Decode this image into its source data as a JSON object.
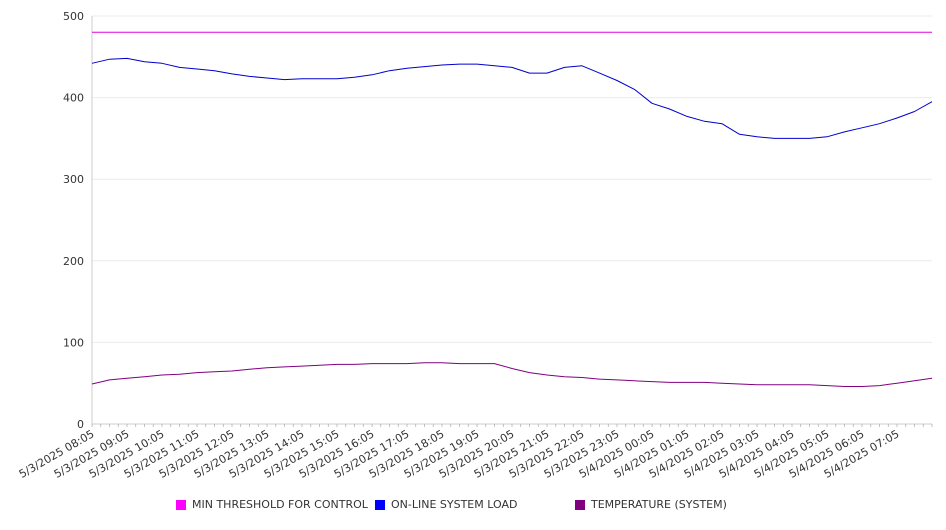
{
  "chart_data": {
    "type": "line",
    "title": "",
    "xlabel": "",
    "ylabel": "",
    "ylim": [
      0,
      500
    ],
    "yticks": [
      0,
      100,
      200,
      300,
      400,
      500
    ],
    "grid": true,
    "legend_position": "bottom",
    "x_tick_labels": [
      "5/3/2025 08:05",
      "5/3/2025 09:05",
      "5/3/2025 10:05",
      "5/3/2025 11:05",
      "5/3/2025 12:05",
      "5/3/2025 13:05",
      "5/3/2025 14:05",
      "5/3/2025 15:05",
      "5/3/2025 16:05",
      "5/3/2025 17:05",
      "5/3/2025 18:05",
      "5/3/2025 19:05",
      "5/3/2025 20:05",
      "5/3/2025 21:05",
      "5/3/2025 22:05",
      "5/3/2025 23:05",
      "5/4/2025 00:05",
      "5/4/2025 01:05",
      "5/4/2025 02:05",
      "5/4/2025 03:05",
      "5/4/2025 04:05",
      "5/4/2025 05:05",
      "5/4/2025 06:05",
      "5/4/2025 07:05"
    ],
    "x": [
      "5/3/2025 08:05",
      "5/3/2025 08:35",
      "5/3/2025 09:05",
      "5/3/2025 09:35",
      "5/3/2025 10:05",
      "5/3/2025 10:35",
      "5/3/2025 11:05",
      "5/3/2025 11:35",
      "5/3/2025 12:05",
      "5/3/2025 12:35",
      "5/3/2025 13:05",
      "5/3/2025 13:35",
      "5/3/2025 14:05",
      "5/3/2025 14:35",
      "5/3/2025 15:05",
      "5/3/2025 15:35",
      "5/3/2025 16:05",
      "5/3/2025 16:35",
      "5/3/2025 17:05",
      "5/3/2025 17:35",
      "5/3/2025 18:05",
      "5/3/2025 18:35",
      "5/3/2025 19:05",
      "5/3/2025 19:35",
      "5/3/2025 20:05",
      "5/3/2025 20:35",
      "5/3/2025 21:05",
      "5/3/2025 21:35",
      "5/3/2025 22:05",
      "5/3/2025 22:35",
      "5/3/2025 23:05",
      "5/3/2025 23:35",
      "5/4/2025 00:05",
      "5/4/2025 00:35",
      "5/4/2025 01:05",
      "5/4/2025 01:35",
      "5/4/2025 02:05",
      "5/4/2025 02:35",
      "5/4/2025 03:05",
      "5/4/2025 03:35",
      "5/4/2025 04:05",
      "5/4/2025 04:35",
      "5/4/2025 05:05",
      "5/4/2025 05:35",
      "5/4/2025 06:05",
      "5/4/2025 06:35",
      "5/4/2025 07:05",
      "5/4/2025 07:35",
      "5/4/2025 08:05"
    ],
    "series": [
      {
        "name": "MIN THRESHOLD FOR CONTROL",
        "color": "#dd00dd",
        "legend_swatch_color": "#ff00ff",
        "values": [
          480,
          480,
          480,
          480,
          480,
          480,
          480,
          480,
          480,
          480,
          480,
          480,
          480,
          480,
          480,
          480,
          480,
          480,
          480,
          480,
          480,
          480,
          480,
          480,
          480,
          480,
          480,
          480,
          480,
          480,
          480,
          480,
          480,
          480,
          480,
          480,
          480,
          480,
          480,
          480,
          480,
          480,
          480,
          480,
          480,
          480,
          480,
          480,
          480
        ]
      },
      {
        "name": "ON-LINE SYSTEM LOAD",
        "color": "#0000cc",
        "legend_swatch_color": "#0000ff",
        "values": [
          442,
          447,
          448,
          444,
          442,
          437,
          435,
          433,
          429,
          426,
          424,
          422,
          423,
          423,
          423,
          425,
          428,
          433,
          436,
          438,
          440,
          441,
          441,
          439,
          437,
          430,
          430,
          437,
          439,
          430,
          421,
          410,
          393,
          386,
          377,
          371,
          368,
          355,
          352,
          350,
          350,
          350,
          352,
          358,
          363,
          368,
          375,
          383,
          395
        ]
      },
      {
        "name": "TEMPERATURE (SYSTEM)",
        "color": "#800080",
        "legend_swatch_color": "#800080",
        "values": [
          49,
          54,
          56,
          58,
          60,
          61,
          63,
          64,
          65,
          67,
          69,
          70,
          71,
          72,
          73,
          73,
          74,
          74,
          74,
          75,
          75,
          74,
          74,
          74,
          68,
          63,
          60,
          58,
          57,
          55,
          54,
          53,
          52,
          51,
          51,
          51,
          50,
          49,
          48,
          48,
          48,
          48,
          47,
          46,
          46,
          47,
          50,
          53,
          56
        ]
      }
    ]
  }
}
